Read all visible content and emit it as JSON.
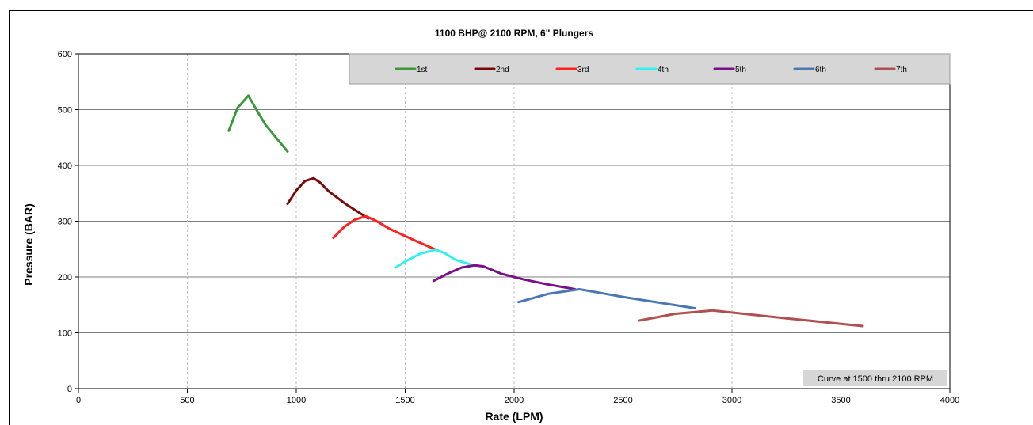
{
  "chart_data": {
    "type": "line",
    "title": "1100 BHP@ 2100 RPM, 6\" Plungers",
    "xlabel": "Rate (LPM)",
    "ylabel": "Pressure (BAR)",
    "xlim": [
      0,
      4000
    ],
    "ylim": [
      0,
      600
    ],
    "xticks": [
      "0",
      "500",
      "1000",
      "1500",
      "2000",
      "2500",
      "3000",
      "3500",
      "4000"
    ],
    "yticks": [
      "0",
      "100",
      "200",
      "300",
      "400",
      "500",
      "600"
    ],
    "grid": "both",
    "legend_position": "top-right",
    "note": "Curve at 1500 thru 2100 RPM",
    "series": [
      {
        "name": "1st",
        "color": "#3a9a3a",
        "points": [
          [
            690,
            462
          ],
          [
            730,
            503
          ],
          [
            780,
            525
          ],
          [
            820,
            498
          ],
          [
            860,
            472
          ],
          [
            960,
            425
          ]
        ]
      },
      {
        "name": "2nd",
        "color": "#7a0a0a",
        "points": [
          [
            960,
            331
          ],
          [
            1000,
            355
          ],
          [
            1040,
            372
          ],
          [
            1080,
            377
          ],
          [
            1110,
            369
          ],
          [
            1150,
            353
          ],
          [
            1230,
            330
          ],
          [
            1330,
            305
          ]
        ]
      },
      {
        "name": "3rd",
        "color": "#ff2020",
        "points": [
          [
            1170,
            270
          ],
          [
            1220,
            290
          ],
          [
            1270,
            303
          ],
          [
            1320,
            309
          ],
          [
            1360,
            302
          ],
          [
            1430,
            286
          ],
          [
            1530,
            268
          ],
          [
            1640,
            249
          ]
        ]
      },
      {
        "name": "4th",
        "color": "#33f0f0",
        "points": [
          [
            1455,
            217
          ],
          [
            1510,
            230
          ],
          [
            1570,
            242
          ],
          [
            1640,
            249
          ],
          [
            1680,
            243
          ],
          [
            1730,
            231
          ],
          [
            1820,
            220
          ]
        ]
      },
      {
        "name": "5th",
        "color": "#7a0f8a",
        "points": [
          [
            1630,
            193
          ],
          [
            1700,
            207
          ],
          [
            1760,
            217
          ],
          [
            1820,
            221
          ],
          [
            1860,
            219
          ],
          [
            1940,
            206
          ],
          [
            2040,
            196
          ],
          [
            2150,
            187
          ],
          [
            2280,
            178
          ]
        ]
      },
      {
        "name": "6th",
        "color": "#4a78b0",
        "points": [
          [
            2020,
            155
          ],
          [
            2160,
            170
          ],
          [
            2300,
            178
          ],
          [
            2520,
            163
          ],
          [
            2830,
            144
          ]
        ]
      },
      {
        "name": "7th",
        "color": "#b05050",
        "points": [
          [
            2575,
            122
          ],
          [
            2740,
            134
          ],
          [
            2910,
            140
          ],
          [
            3250,
            126
          ],
          [
            3600,
            112
          ]
        ]
      }
    ]
  }
}
